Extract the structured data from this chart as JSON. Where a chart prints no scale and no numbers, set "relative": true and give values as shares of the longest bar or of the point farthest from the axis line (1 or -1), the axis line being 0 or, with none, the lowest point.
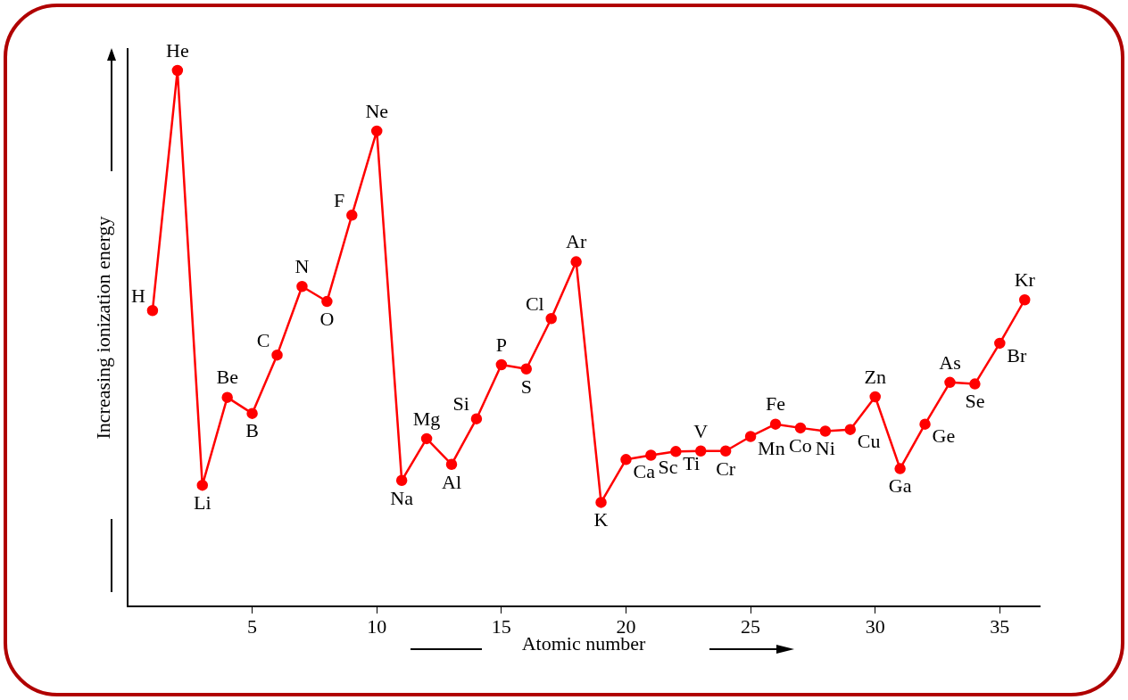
{
  "chart_data": {
    "type": "line",
    "relative": true,
    "xlabel": "Atomic number",
    "ylabel": "Increasing ionization energy",
    "x": [
      1,
      2,
      3,
      4,
      5,
      6,
      7,
      8,
      9,
      10,
      11,
      12,
      13,
      14,
      15,
      16,
      17,
      18,
      19,
      20,
      21,
      22,
      23,
      24,
      25,
      26,
      27,
      28,
      29,
      30,
      31,
      32,
      33,
      34,
      35,
      36
    ],
    "xlim": [
      0,
      36.6
    ],
    "xticks": [
      5,
      10,
      15,
      20,
      25,
      30,
      35
    ],
    "series": [
      {
        "color": "#ff0000",
        "values": [
          0.552,
          1,
          0.226,
          0.39,
          0.36,
          0.469,
          0.597,
          0.569,
          0.73,
          0.887,
          0.235,
          0.313,
          0.265,
          0.35,
          0.451,
          0.443,
          0.537,
          0.643,
          0.194,
          0.274,
          0.282,
          0.289,
          0.29,
          0.29,
          0.317,
          0.34,
          0.333,
          0.327,
          0.33,
          0.391,
          0.257,
          0.34,
          0.418,
          0.415,
          0.491,
          0.572
        ]
      }
    ],
    "marker": "circle",
    "line_style": "solid",
    "grid": false,
    "legend": false,
    "annotations": [
      {
        "text": "H",
        "x": 1,
        "y": 0.552
      },
      {
        "text": "He",
        "x": 2,
        "y": 1
      },
      {
        "text": "Li",
        "x": 3,
        "y": 0.226
      },
      {
        "text": "Be",
        "x": 4,
        "y": 0.39
      },
      {
        "text": "B",
        "x": 5,
        "y": 0.36
      },
      {
        "text": "C",
        "x": 6,
        "y": 0.469
      },
      {
        "text": "N",
        "x": 7,
        "y": 0.597
      },
      {
        "text": "O",
        "x": 8,
        "y": 0.569
      },
      {
        "text": "F",
        "x": 9,
        "y": 0.73
      },
      {
        "text": "Ne",
        "x": 10,
        "y": 0.887
      },
      {
        "text": "Na",
        "x": 11,
        "y": 0.235
      },
      {
        "text": "Mg",
        "x": 12,
        "y": 0.313
      },
      {
        "text": "Al",
        "x": 13,
        "y": 0.265
      },
      {
        "text": "Si",
        "x": 14,
        "y": 0.35
      },
      {
        "text": "P",
        "x": 15,
        "y": 0.451
      },
      {
        "text": "S",
        "x": 16,
        "y": 0.443
      },
      {
        "text": "Cl",
        "x": 17,
        "y": 0.537
      },
      {
        "text": "Ar",
        "x": 18,
        "y": 0.643
      },
      {
        "text": "K",
        "x": 19,
        "y": 0.194
      },
      {
        "text": "Ca",
        "x": 20,
        "y": 0.274
      },
      {
        "text": "Sc",
        "x": 21,
        "y": 0.282
      },
      {
        "text": "Ti",
        "x": 22,
        "y": 0.289
      },
      {
        "text": "V",
        "x": 23,
        "y": 0.29
      },
      {
        "text": "Cr",
        "x": 24,
        "y": 0.29
      },
      {
        "text": "Mn",
        "x": 25,
        "y": 0.317
      },
      {
        "text": "Fe",
        "x": 26,
        "y": 0.34
      },
      {
        "text": "Co",
        "x": 27,
        "y": 0.333
      },
      {
        "text": "Ni",
        "x": 28,
        "y": 0.327
      },
      {
        "text": "Cu",
        "x": 29,
        "y": 0.33
      },
      {
        "text": "Zn",
        "x": 30,
        "y": 0.391
      },
      {
        "text": "Ga",
        "x": 31,
        "y": 0.257
      },
      {
        "text": "Ge",
        "x": 32,
        "y": 0.34
      },
      {
        "text": "As",
        "x": 33,
        "y": 0.418
      },
      {
        "text": "Se",
        "x": 34,
        "y": 0.415
      },
      {
        "text": "Br",
        "x": 35,
        "y": 0.491
      },
      {
        "text": "Kr",
        "x": 36,
        "y": 0.572
      }
    ]
  }
}
